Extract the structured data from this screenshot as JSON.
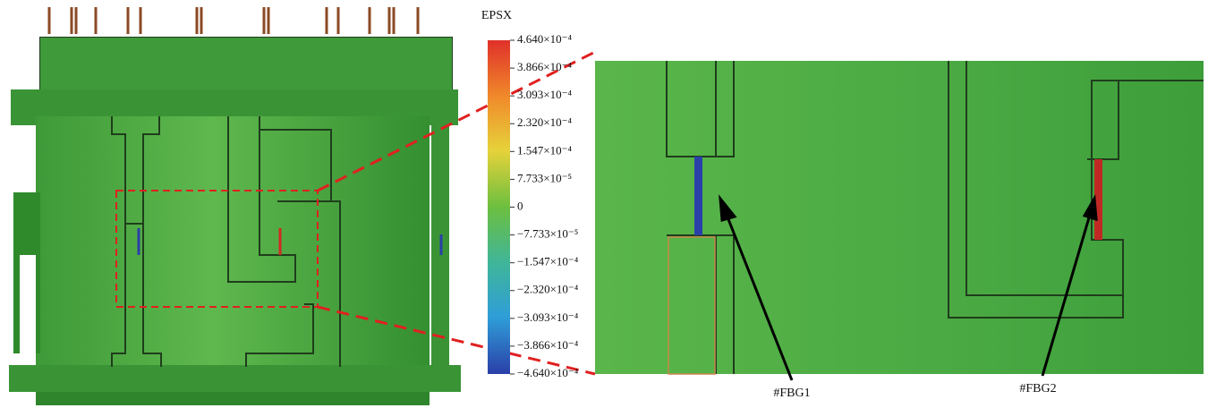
{
  "colorbar": {
    "title": "EPSX",
    "lim": [
      -0.000464,
      0.000464
    ],
    "ticks": [
      {
        "value": 0.000464,
        "label": "4.640×10⁻⁴"
      },
      {
        "value": 0.0003866,
        "label": "3.866×10⁻⁴"
      },
      {
        "value": 0.0003093,
        "label": "3.093×10⁻⁴"
      },
      {
        "value": 0.000232,
        "label": "2.320×10⁻⁴"
      },
      {
        "value": 0.0001547,
        "label": "1.547×10⁻⁴"
      },
      {
        "value": 7.733e-05,
        "label": "7.733×10⁻⁵"
      },
      0,
      {
        "value": -7.733e-05,
        "label": "−7.733×10⁻⁵"
      },
      {
        "value": -0.0001547,
        "label": "−1.547×10⁻⁴"
      },
      {
        "value": -0.000232,
        "label": "−2.320×10⁻⁴"
      },
      {
        "value": -0.0003093,
        "label": "−3.093×10⁻⁴"
      },
      {
        "value": -0.0003866,
        "label": "−3.866×10⁻⁴"
      },
      {
        "value": -0.000464,
        "label": "−4.640×10⁻⁴"
      }
    ]
  },
  "annotations": [
    "#FBG1",
    "#FBG2"
  ]
}
